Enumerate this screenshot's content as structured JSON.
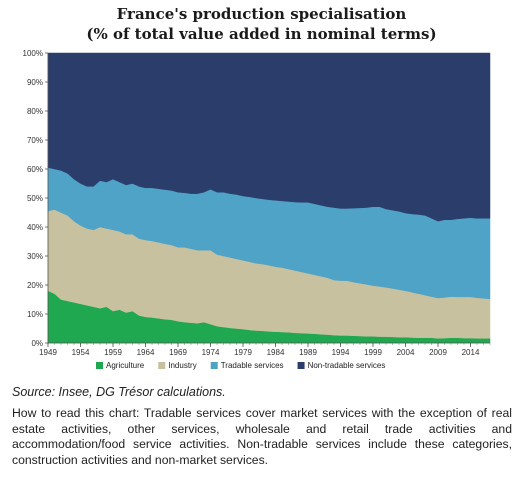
{
  "chart_data": {
    "type": "area",
    "stacked": true,
    "title_lines": [
      "France's production specialisation",
      "(% of total value added in nominal terms)"
    ],
    "x": [
      1949,
      1950,
      1951,
      1952,
      1953,
      1954,
      1955,
      1956,
      1957,
      1958,
      1959,
      1960,
      1961,
      1962,
      1963,
      1964,
      1965,
      1966,
      1967,
      1968,
      1969,
      1970,
      1971,
      1972,
      1973,
      1974,
      1975,
      1976,
      1977,
      1978,
      1979,
      1980,
      1981,
      1982,
      1983,
      1984,
      1985,
      1986,
      1987,
      1988,
      1989,
      1990,
      1991,
      1992,
      1993,
      1994,
      1995,
      1996,
      1997,
      1998,
      1999,
      2000,
      2001,
      2002,
      2003,
      2004,
      2005,
      2006,
      2007,
      2008,
      2009,
      2010,
      2011,
      2012,
      2013,
      2014,
      2015,
      2016,
      2017
    ],
    "series": [
      {
        "name": "Agriculture",
        "color": "#1fa84f",
        "values": [
          18,
          17,
          15,
          14.5,
          14,
          13.5,
          13,
          12.5,
          12,
          12.5,
          11,
          11.5,
          10.5,
          11,
          9.5,
          9,
          8.8,
          8.5,
          8.2,
          8,
          7.5,
          7.2,
          7,
          6.8,
          7.2,
          6.5,
          5.8,
          5.5,
          5.2,
          5,
          4.8,
          4.5,
          4.3,
          4.2,
          4,
          3.9,
          3.8,
          3.7,
          3.5,
          3.4,
          3.3,
          3.2,
          3,
          2.9,
          2.7,
          2.6,
          2.6,
          2.5,
          2.4,
          2.3,
          2.3,
          2.2,
          2.2,
          2.1,
          2,
          2,
          1.9,
          1.8,
          1.8,
          1.8,
          1.6,
          1.7,
          1.8,
          1.8,
          1.7,
          1.7,
          1.6,
          1.6,
          1.6
        ]
      },
      {
        "name": "Industry",
        "color": "#c7c1a0",
        "values": [
          27.5,
          29,
          30,
          29.5,
          28,
          27,
          26.5,
          26.5,
          28,
          27,
          28,
          27,
          27,
          26.5,
          26.5,
          26.5,
          26.4,
          26.2,
          26,
          25.8,
          25.5,
          25.8,
          25.5,
          25.2,
          24.8,
          25.5,
          24.7,
          24.5,
          24.3,
          24,
          23.7,
          23.5,
          23.2,
          23,
          22.8,
          22.4,
          22.2,
          21.8,
          21.5,
          21.1,
          20.7,
          20.3,
          20,
          19.6,
          19,
          18.9,
          18.9,
          18.5,
          18.2,
          17.9,
          17.5,
          17.3,
          17,
          16.7,
          16.4,
          16,
          15.6,
          15.2,
          14.7,
          14.2,
          13.9,
          14,
          14.2,
          14.1,
          14.2,
          14.2,
          14,
          13.8,
          13.6
        ]
      },
      {
        "name": "Tradable services",
        "color": "#4fa3c7",
        "values": [
          15,
          14,
          14.5,
          14.5,
          14.5,
          14.5,
          14.5,
          15,
          16,
          16,
          17.5,
          17,
          17,
          17.5,
          18,
          18,
          18.3,
          18.5,
          18.7,
          18.8,
          19,
          18.8,
          19,
          19.5,
          20,
          21,
          21.5,
          22,
          22,
          22.2,
          22.2,
          22.4,
          22.5,
          22.5,
          22.6,
          22.9,
          23,
          23.3,
          23.6,
          24,
          24.5,
          24.5,
          24.5,
          24.5,
          25,
          24.9,
          24.9,
          25.5,
          26,
          26.5,
          27.2,
          27.5,
          27,
          27,
          27,
          26.8,
          27,
          27.3,
          27.5,
          27,
          26.5,
          26.8,
          26.5,
          26.9,
          27.1,
          27.3,
          27.4,
          27.6,
          27.8
        ]
      },
      {
        "name": "Non-tradable services",
        "color": "#2b3e6b",
        "values": [
          39.5,
          40,
          40.5,
          41.5,
          43.5,
          45,
          46,
          46,
          44,
          44.5,
          43.5,
          44.5,
          45.5,
          45,
          46,
          46.5,
          46.5,
          46.8,
          47.1,
          47.4,
          48,
          48.2,
          48.5,
          48.5,
          48,
          47,
          48,
          48,
          48.5,
          48.8,
          49.3,
          49.6,
          50,
          50.3,
          50.6,
          50.8,
          51,
          51.2,
          51.4,
          51.5,
          51.5,
          52,
          52.5,
          53,
          53.3,
          53.6,
          53.6,
          53.5,
          53.4,
          53.3,
          53,
          53,
          53.8,
          54.2,
          54.6,
          55.2,
          55.5,
          55.7,
          56,
          57,
          58,
          57.5,
          57.5,
          57.2,
          57,
          56.8,
          57,
          57,
          57
        ]
      }
    ],
    "x_ticks": [
      "1949",
      "1954",
      "1959",
      "1964",
      "1969",
      "1974",
      "1979",
      "1984",
      "1989",
      "1994",
      "1999",
      "2004",
      "2009",
      "2014"
    ],
    "y_ticks": [
      "0%",
      "10%",
      "20%",
      "30%",
      "40%",
      "50%",
      "60%",
      "70%",
      "80%",
      "90%",
      "100%"
    ],
    "ylim": [
      0,
      100
    ],
    "grid": false,
    "legend_position": "bottom"
  },
  "source": "Source: Insee, DG Trésor calculations.",
  "note": "How to read this chart: Tradable services cover market services with the exception of real estate activities, other services, wholesale and retail trade activities and accommodation/food service activities. Non-tradable services include these categories, construction activities and non-market services."
}
